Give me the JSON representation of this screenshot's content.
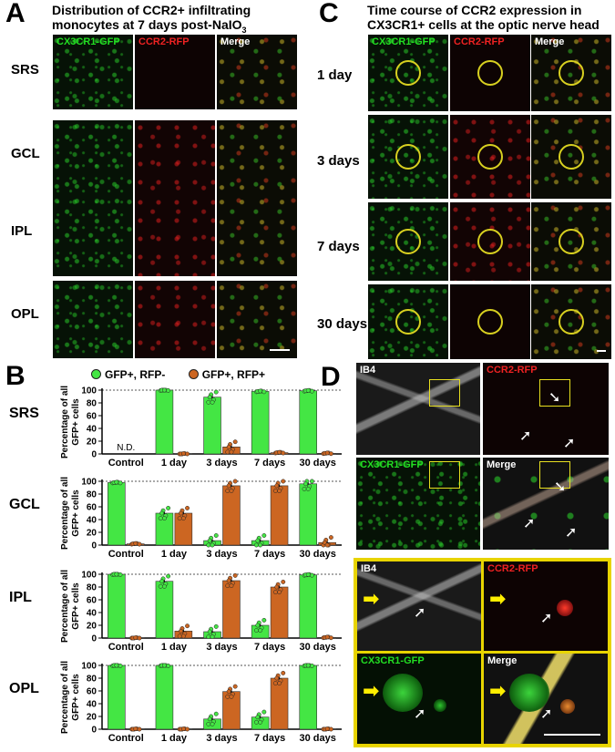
{
  "panelA": {
    "letter": "A",
    "title_line1": "Distribution of CCR2+ infiltrating",
    "title_line2": "monocytes at 7 days post-NaIO",
    "title_sub": "3",
    "col_labels": [
      "CX3CR1-GFP",
      "CCR2-RFP",
      "Merge"
    ],
    "rows": [
      "SRS",
      "GCL",
      "IPL",
      "OPL"
    ]
  },
  "panelC": {
    "letter": "C",
    "title_line1": "Time course of CCR2 expression in",
    "title_line2": "CX3CR1+ cells at the optic nerve head",
    "col_labels": [
      "CX3CR1-GFP",
      "CCR2-RFP",
      "Merge"
    ],
    "rows": [
      "1 day",
      "3 days",
      "7 days",
      "30 days"
    ]
  },
  "panelB": {
    "letter": "B",
    "legend": [
      "GFP+, RFP-",
      "GFP+, RFP+"
    ],
    "colors": {
      "green": "#44e644",
      "orange": "#cc6622"
    },
    "ylabel_line1": "Percentage of all",
    "ylabel_line2": "GFP+ cells",
    "nd_label": "N.D."
  },
  "panelD": {
    "letter": "D",
    "top_labels": [
      "IB4",
      "CCR2-RFP",
      "CX3CR1-GFP",
      "Merge"
    ],
    "bottom_labels": [
      "IB4",
      "CCR2-RFP",
      "CX3CR1-GFP",
      "Merge"
    ]
  },
  "chart_data": [
    {
      "type": "bar",
      "title": "SRS",
      "categories": [
        "Control",
        "1 day",
        "3 days",
        "7 days",
        "30 days"
      ],
      "yticks": [
        0,
        20,
        40,
        60,
        80,
        100
      ],
      "ylim": [
        0,
        100
      ],
      "grid": "dotted line at 100",
      "series": [
        {
          "name": "GFP+, RFP-",
          "values": [
            null,
            100,
            89,
            98,
            99
          ]
        },
        {
          "name": "GFP+, RFP+",
          "values": [
            null,
            0,
            11,
            2,
            1
          ]
        }
      ],
      "annotations": [
        "N.D."
      ]
    },
    {
      "type": "bar",
      "title": "GCL",
      "categories": [
        "Control",
        "1 day",
        "3 days",
        "7 days",
        "30 days"
      ],
      "yticks": [
        0,
        20,
        40,
        60,
        80,
        100
      ],
      "ylim": [
        0,
        100
      ],
      "series": [
        {
          "name": "GFP+, RFP-",
          "values": [
            98,
            50,
            7,
            7,
            96
          ]
        },
        {
          "name": "GFP+, RFP+",
          "values": [
            2,
            50,
            93,
            93,
            4
          ]
        }
      ]
    },
    {
      "type": "bar",
      "title": "IPL",
      "categories": [
        "Control",
        "1 day",
        "3 days",
        "7 days",
        "30 days"
      ],
      "yticks": [
        0,
        20,
        40,
        60,
        80,
        100
      ],
      "ylim": [
        0,
        100
      ],
      "series": [
        {
          "name": "GFP+, RFP-",
          "values": [
            100,
            89,
            10,
            20,
            99
          ]
        },
        {
          "name": "GFP+, RFP+",
          "values": [
            0,
            11,
            90,
            80,
            1
          ]
        }
      ]
    },
    {
      "type": "bar",
      "title": "OPL",
      "categories": [
        "Control",
        "1 day",
        "3 days",
        "7 days",
        "30 days"
      ],
      "yticks": [
        0,
        20,
        40,
        60,
        80,
        100
      ],
      "ylim": [
        0,
        100
      ],
      "series": [
        {
          "name": "GFP+, RFP-",
          "values": [
            100,
            100,
            16,
            19,
            100
          ]
        },
        {
          "name": "GFP+, RFP+",
          "values": [
            0,
            0,
            59,
            80,
            0
          ]
        }
      ]
    }
  ]
}
